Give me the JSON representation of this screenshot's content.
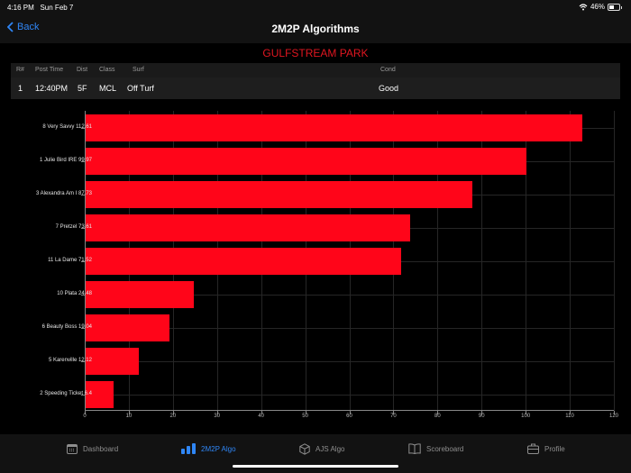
{
  "status_bar": {
    "time": "4:16 PM",
    "date": "Sun Feb 7",
    "battery": "46%"
  },
  "nav": {
    "back_label": "Back",
    "title": "2M2P Algorithms"
  },
  "track": "GULFSTREAM PARK",
  "race_table": {
    "headers": [
      "R#",
      "Post Time",
      "Dist",
      "Class",
      "Surf",
      "Cond"
    ],
    "row": [
      "1",
      "12:40PM",
      "5F",
      "MCL",
      "Off Turf",
      "Good"
    ]
  },
  "chart_data": {
    "type": "bar",
    "orientation": "horizontal",
    "title": "",
    "xlabel": "",
    "ylabel": "",
    "categories": [
      "8 Very Savvy 112.61",
      "1 Julie Bird IRE 99.97",
      "3 Alexandra Am I 87.73",
      "7 Pretzel 73.61",
      "11 La Dame 71.52",
      "10 Plata 24.48",
      "6 Beauty Boss 19.04",
      "5 Karenville 12.12",
      "2 Speeding Ticket 6.4"
    ],
    "values": [
      112.61,
      99.97,
      87.73,
      73.61,
      71.52,
      24.48,
      19.04,
      12.12,
      6.4
    ],
    "xlim": [
      0,
      120
    ],
    "x_ticks": [
      "0",
      "10",
      "20",
      "30",
      "40",
      "50",
      "60",
      "70",
      "80",
      "90",
      "100",
      "110",
      "120"
    ],
    "grid": true,
    "legend": "none",
    "bar_color": "#ff0519"
  },
  "tabs": [
    {
      "label": "Dashboard",
      "icon": "calendar-icon",
      "active": false
    },
    {
      "label": "2M2P Algo",
      "icon": "bar-chart-icon",
      "active": true
    },
    {
      "label": "AJS Algo",
      "icon": "cube-icon",
      "active": false
    },
    {
      "label": "Scoreboard",
      "icon": "book-icon",
      "active": false
    },
    {
      "label": "Profile",
      "icon": "briefcase-icon",
      "active": false
    }
  ],
  "colors": {
    "accent": "#2f86f6",
    "track_title": "#e01620",
    "bar": "#ff0519"
  }
}
